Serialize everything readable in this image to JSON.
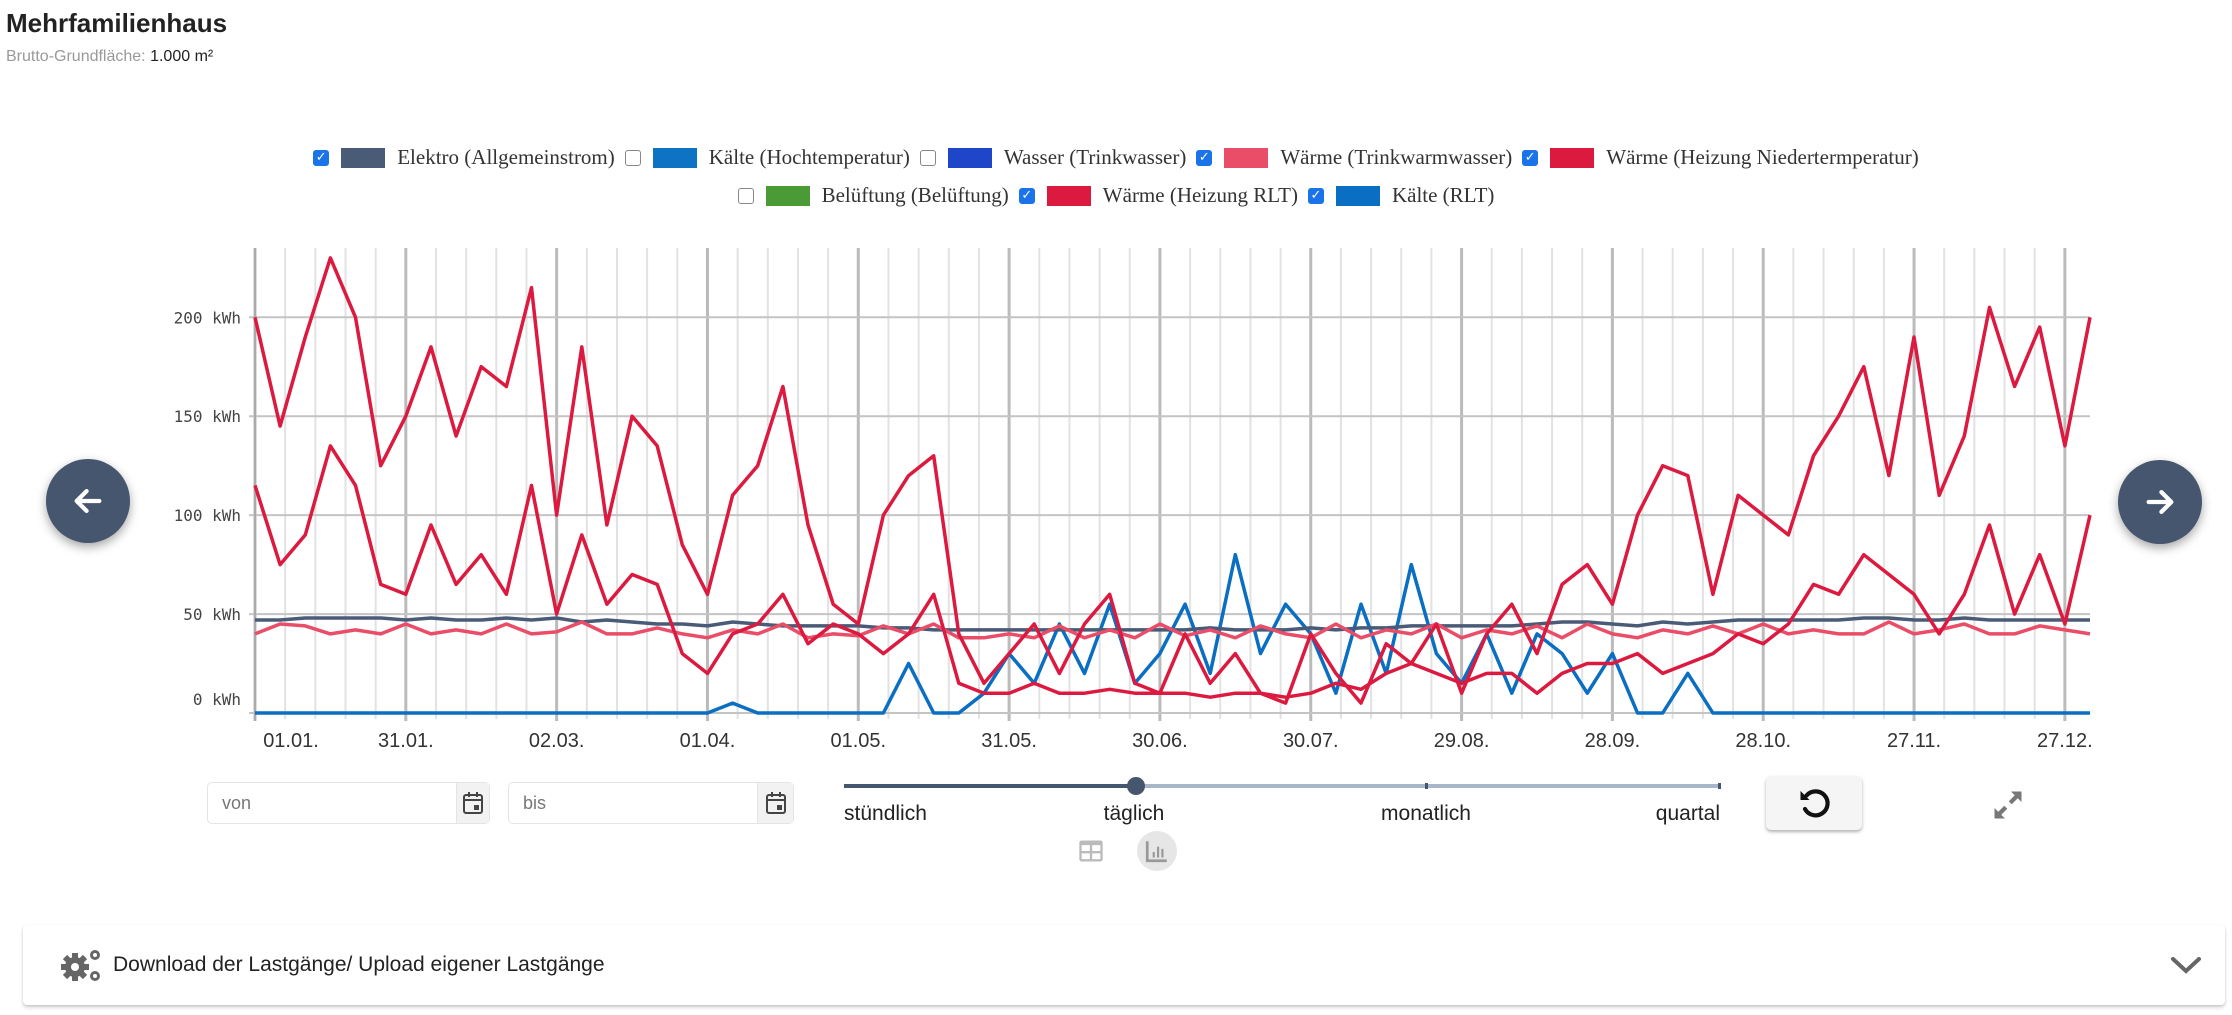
{
  "header": {
    "title": "Mehrfamilienhaus",
    "area_label": "Brutto-Grundfläche:",
    "area_value": "1.000 m²"
  },
  "legend": [
    {
      "label": "Elektro (Allgemeinstrom)",
      "checked": true,
      "color": "#4a5b78"
    },
    {
      "label": "Kälte (Hochtemperatur)",
      "checked": false,
      "color": "#0f73c4"
    },
    {
      "label": "Wasser (Trinkwasser)",
      "checked": false,
      "color": "#1f45c8"
    },
    {
      "label": "Wärme (Trinkwarmwasser)",
      "checked": true,
      "color": "#ea4d68"
    },
    {
      "label": "Wärme (Heizung Niedertermperatur)",
      "checked": true,
      "color": "#dc1a40"
    },
    {
      "label": "Belüftung (Belüftung)",
      "checked": false,
      "color": "#4a9a35"
    },
    {
      "label": "Wärme (Heizung RLT)",
      "checked": true,
      "color": "#dc1a40"
    },
    {
      "label": "Kälte (RLT)",
      "checked": true,
      "color": "#0a6ec2"
    }
  ],
  "controls": {
    "from_placeholder": "von",
    "to_placeholder": "bis",
    "resolution_options": [
      "stündlich",
      "täglich",
      "monatlich",
      "quartal"
    ],
    "resolution_selected": "täglich",
    "resolution_index": 1
  },
  "accordion": {
    "label": "Download der Lastgänge/ Upload eigener Lastgänge"
  },
  "chart_data": {
    "type": "line",
    "title": "",
    "xlabel": "",
    "ylabel": "kWh",
    "x_start_day": 0,
    "x_step_days": 5,
    "xlim": [
      0,
      365
    ],
    "ylim": [
      0,
      235
    ],
    "grid": true,
    "legend_position": "top-center",
    "y_ticks": [
      0,
      50,
      100,
      150,
      200
    ],
    "y_tick_labels": [
      "0 kWh",
      "50 kWh",
      "100 kWh",
      "150 kWh",
      "200 kWh"
    ],
    "x_ticks_day": [
      0,
      30,
      60,
      90,
      120,
      150,
      180,
      210,
      240,
      270,
      300,
      330,
      360
    ],
    "x_tick_labels": [
      "01.01.",
      "31.01.",
      "02.03.",
      "01.04.",
      "01.05.",
      "31.05.",
      "30.06.",
      "30.07.",
      "29.08.",
      "28.09.",
      "28.10.",
      "27.11.",
      "27.12."
    ],
    "series": [
      {
        "name": "Kälte (RLT)",
        "color": "#0a6ec2",
        "values": [
          0,
          0,
          0,
          0,
          0,
          0,
          0,
          0,
          0,
          0,
          0,
          0,
          0,
          0,
          0,
          0,
          0,
          0,
          0,
          5,
          0,
          0,
          0,
          0,
          0,
          0,
          25,
          0,
          0,
          10,
          30,
          15,
          45,
          20,
          55,
          15,
          30,
          55,
          20,
          80,
          30,
          55,
          40,
          10,
          55,
          20,
          75,
          30,
          15,
          40,
          10,
          40,
          30,
          10,
          30,
          0,
          0,
          20,
          0,
          0,
          0,
          0,
          0,
          0,
          0,
          0,
          0,
          0,
          0,
          0,
          0,
          0,
          0,
          0
        ]
      },
      {
        "name": "Elektro (Allgemeinstrom)",
        "color": "#4a5b78",
        "values": [
          47,
          47,
          48,
          48,
          48,
          48,
          47,
          48,
          47,
          47,
          48,
          47,
          48,
          46,
          47,
          46,
          45,
          45,
          44,
          46,
          45,
          44,
          44,
          44,
          44,
          43,
          43,
          42,
          42,
          42,
          42,
          42,
          42,
          42,
          42,
          42,
          42,
          42,
          43,
          42,
          42,
          42,
          43,
          42,
          43,
          43,
          44,
          44,
          44,
          44,
          44,
          45,
          46,
          46,
          45,
          44,
          46,
          45,
          46,
          47,
          47,
          47,
          47,
          47,
          48,
          48,
          47,
          47,
          48,
          47,
          47,
          47,
          47,
          47
        ]
      },
      {
        "name": "Wärme (Trinkwarmwasser)",
        "color": "#ea4d68",
        "values": [
          40,
          45,
          44,
          40,
          42,
          40,
          45,
          40,
          42,
          40,
          45,
          40,
          41,
          46,
          40,
          40,
          43,
          40,
          38,
          42,
          40,
          45,
          38,
          40,
          39,
          44,
          40,
          45,
          38,
          38,
          40,
          38,
          44,
          38,
          42,
          38,
          45,
          39,
          42,
          38,
          44,
          40,
          38,
          45,
          38,
          42,
          40,
          45,
          38,
          42,
          40,
          44,
          38,
          45,
          40,
          38,
          42,
          40,
          44,
          40,
          45,
          40,
          42,
          40,
          40,
          46,
          40,
          42,
          45,
          40,
          40,
          44,
          42,
          40
        ]
      },
      {
        "name": "Wärme (Heizung Niedertermperatur)",
        "color": "#dc1a40",
        "values": [
          200,
          145,
          190,
          230,
          200,
          125,
          150,
          185,
          140,
          175,
          165,
          215,
          100,
          185,
          95,
          150,
          135,
          85,
          60,
          110,
          125,
          165,
          95,
          55,
          45,
          100,
          120,
          130,
          40,
          15,
          30,
          45,
          20,
          45,
          60,
          15,
          10,
          40,
          15,
          30,
          10,
          5,
          40,
          20,
          5,
          35,
          25,
          45,
          10,
          40,
          55,
          30,
          65,
          75,
          55,
          100,
          125,
          120,
          60,
          110,
          100,
          90,
          130,
          150,
          175,
          120,
          190,
          110,
          140,
          205,
          165,
          195,
          135,
          200
        ]
      },
      {
        "name": "Wärme (Heizung RLT)",
        "color": "#dc1a40",
        "values": [
          115,
          75,
          90,
          135,
          115,
          65,
          60,
          95,
          65,
          80,
          60,
          115,
          50,
          90,
          55,
          70,
          65,
          30,
          20,
          40,
          45,
          60,
          35,
          45,
          40,
          30,
          40,
          60,
          15,
          10,
          10,
          15,
          10,
          10,
          12,
          10,
          10,
          10,
          8,
          10,
          10,
          8,
          10,
          15,
          12,
          20,
          25,
          20,
          15,
          20,
          20,
          10,
          20,
          25,
          25,
          30,
          20,
          25,
          30,
          40,
          35,
          45,
          65,
          60,
          80,
          70,
          60,
          40,
          60,
          95,
          50,
          80,
          45,
          100
        ]
      }
    ]
  }
}
